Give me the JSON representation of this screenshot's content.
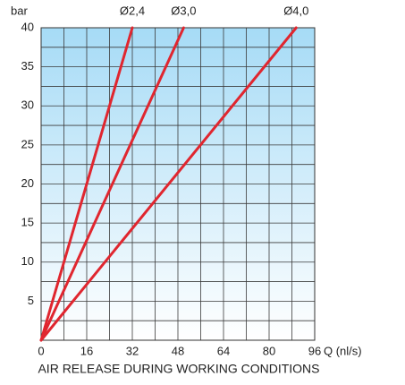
{
  "chart_data": {
    "type": "line",
    "title": "AIR RELEASE DURING WORKING CONDITIONS",
    "x_label": "Q (nl/s)",
    "y_label": "bar",
    "xlim": [
      0,
      96
    ],
    "ylim": [
      0,
      40
    ],
    "xticks": [
      0,
      16,
      32,
      48,
      64,
      80,
      96
    ],
    "yticks": [
      5,
      10,
      15,
      20,
      25,
      30,
      35,
      40
    ],
    "xgrid": [
      8,
      16,
      24,
      32,
      40,
      48,
      56,
      64,
      72,
      80,
      88
    ],
    "ygrid": [
      2.5,
      5,
      7.5,
      10,
      12.5,
      15,
      17.5,
      20,
      22.5,
      25,
      27.5,
      30,
      32.5,
      35,
      37.5
    ],
    "grid": true,
    "series": [
      {
        "name": "Ø2,4",
        "color": "#e0262f",
        "x": [
          0,
          32
        ],
        "values": [
          0,
          40
        ]
      },
      {
        "name": "Ø3,0",
        "color": "#e0262f",
        "x": [
          0,
          50
        ],
        "values": [
          0,
          40
        ]
      },
      {
        "name": "Ø4,0",
        "color": "#e0262f",
        "x": [
          0,
          89.5
        ],
        "values": [
          0,
          40
        ]
      }
    ]
  }
}
